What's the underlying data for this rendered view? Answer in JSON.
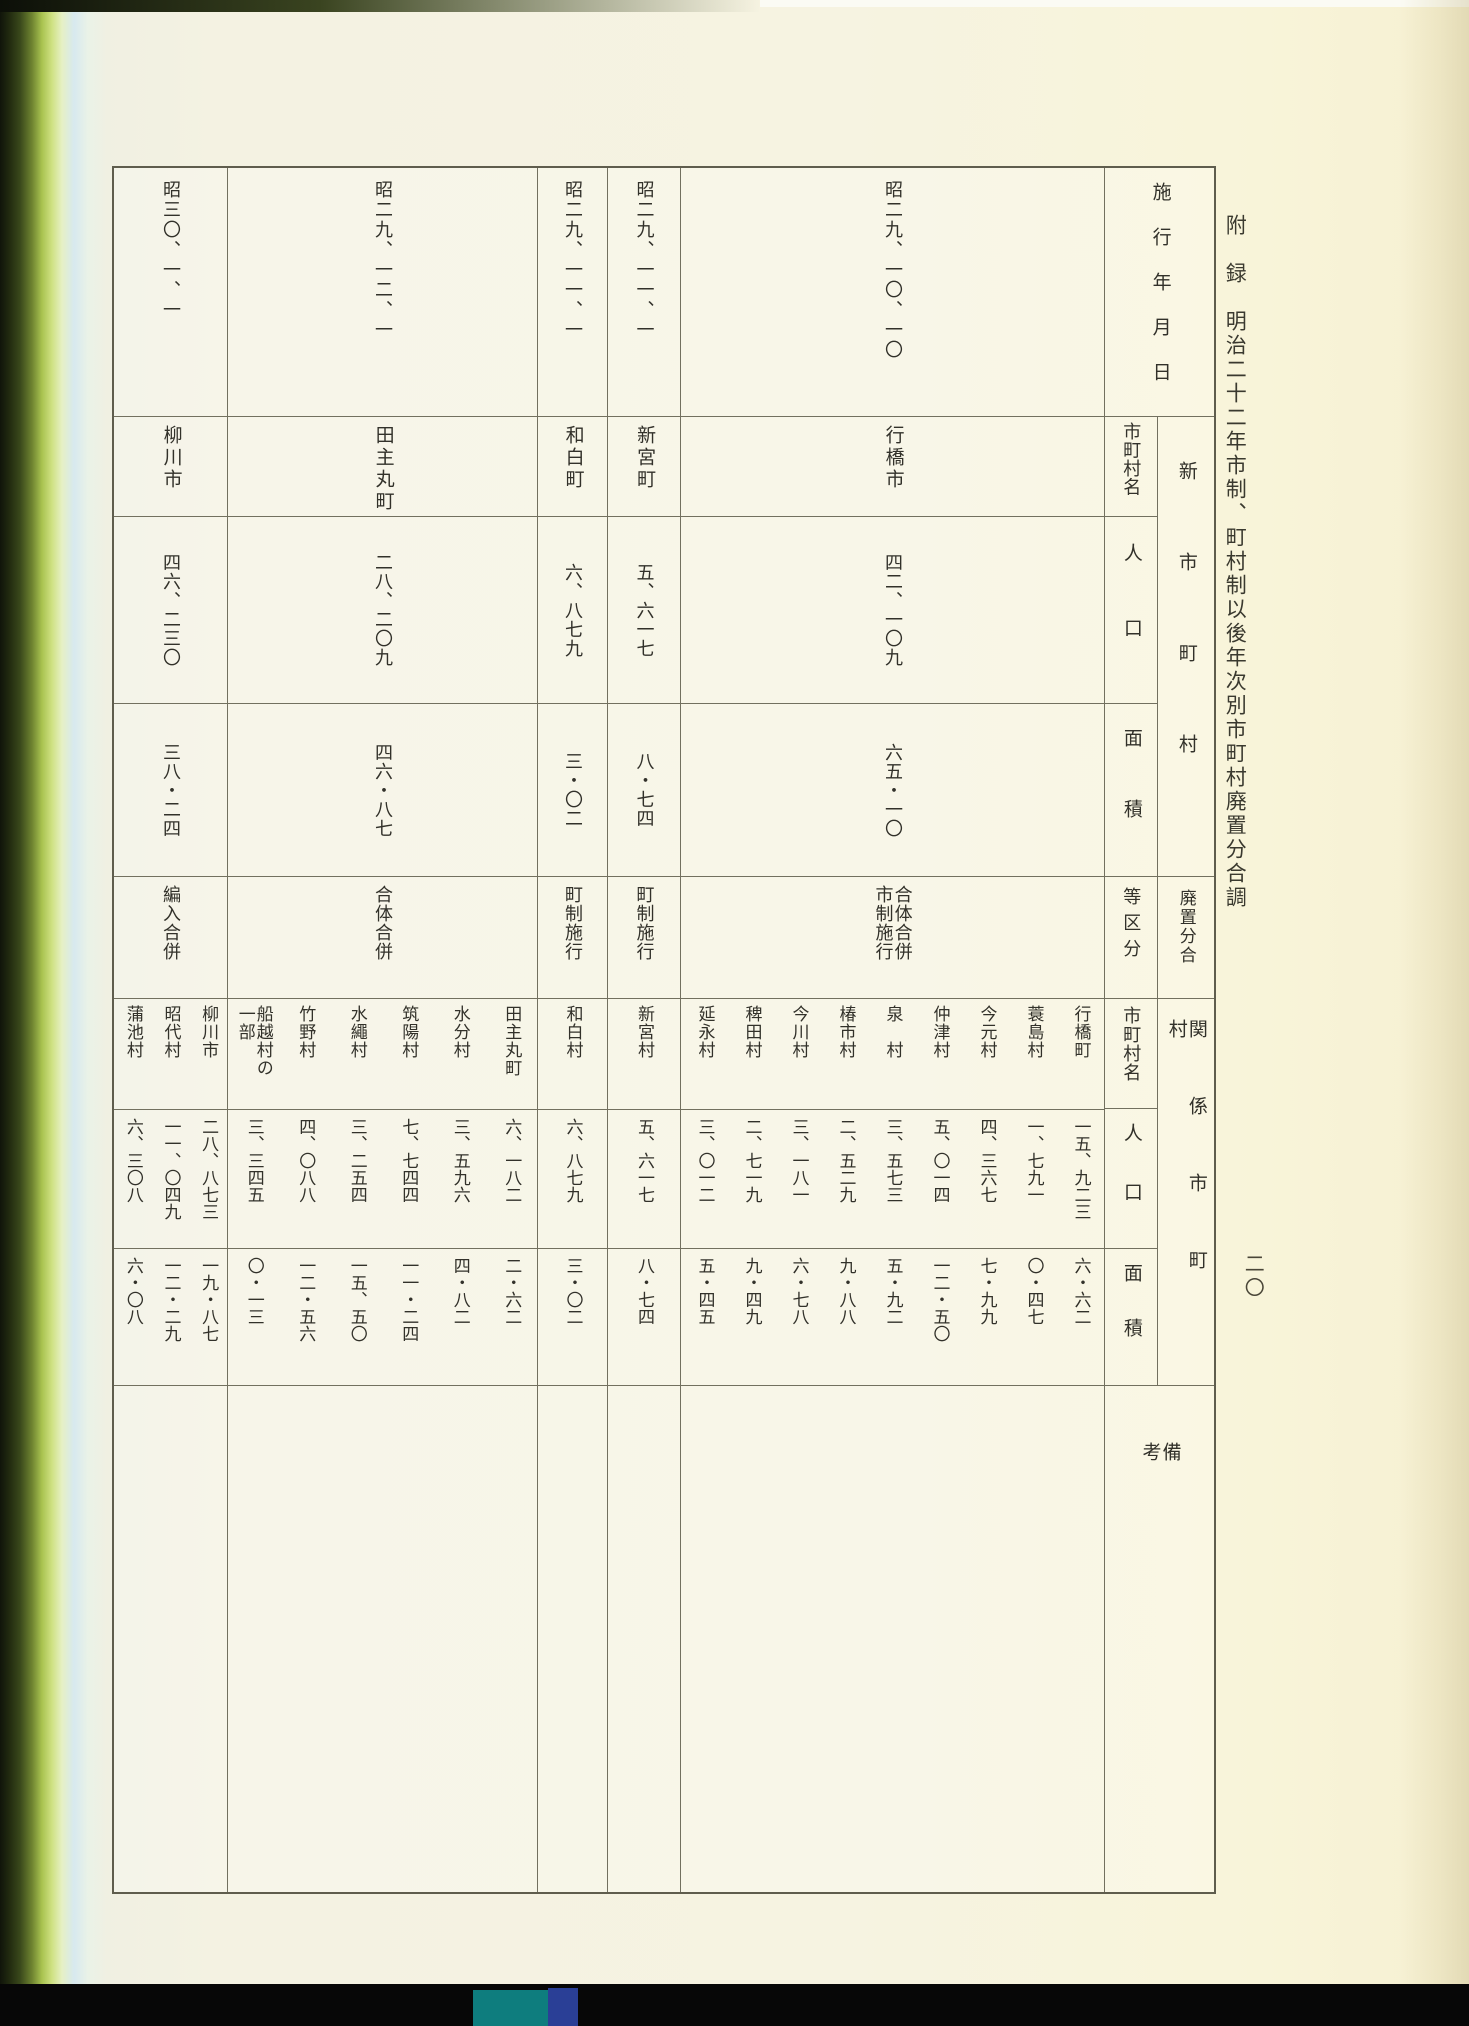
{
  "page": {
    "title": "附　録　明治二十二年市制、町村制以後年次別市町村廃置分合調",
    "page_number": "二〇",
    "colors": {
      "page_bg": "#f6f3e1",
      "table_line": "#72705f",
      "text": "#32312a",
      "gutter_green": "#a9c350",
      "gutter_blue": "#d7e9ef",
      "scan_edge": "#070707",
      "bottom_spot_teal": "#0e7d7e",
      "bottom_spot_blue": "#2a3f96"
    }
  },
  "table": {
    "headers": {
      "date": "施行年月日",
      "new_group": "新市町村",
      "new_name": "市町村名",
      "new_population": "人口",
      "new_area": "面積",
      "category_group": "廃置分合",
      "category": "等区分",
      "related_group": "関係市町村",
      "related_name": "市町村名",
      "related_population": "人口",
      "related_area": "面積",
      "remarks": "備考"
    },
    "rows": [
      {
        "date": "昭二九、一〇、一〇",
        "name": "行橋市",
        "population": "四二、一〇九",
        "area": "六五・一〇",
        "category": "合体合併\n市制施行",
        "related": [
          {
            "name": "行橋町",
            "population": "一五、九二三",
            "area": "六・六二"
          },
          {
            "name": "蓑島村",
            "population": "一、七九一",
            "area": "〇・四七"
          },
          {
            "name": "今元村",
            "population": "四、三六七",
            "area": "七・九九"
          },
          {
            "name": "仲津村",
            "population": "五、〇一四",
            "area": "一二・五〇"
          },
          {
            "name": "泉　村",
            "population": "三、五七三",
            "area": "五・九二"
          },
          {
            "name": "椿市村",
            "population": "二、五二九",
            "area": "九・八八"
          },
          {
            "name": "今川村",
            "population": "三、一八一",
            "area": "六・七八"
          },
          {
            "name": "稗田村",
            "population": "二、七一九",
            "area": "九・四九"
          },
          {
            "name": "延永村",
            "population": "三、〇一二",
            "area": "五・四五"
          }
        ]
      },
      {
        "date": "昭二九、一一、一",
        "name": "新宮町",
        "population": "五、六一七",
        "area": "八・七四",
        "category": "町制施行",
        "related": [
          {
            "name": "新宮村",
            "population": "五、六一七",
            "area": "八・七四"
          }
        ]
      },
      {
        "date": "昭二九、一一、一",
        "name": "和白町",
        "population": "六、八七九",
        "area": "三・〇二",
        "category": "町制施行",
        "related": [
          {
            "name": "和白村",
            "population": "六、八七九",
            "area": "三・〇二"
          }
        ]
      },
      {
        "date": "昭二九、一二、一",
        "name": "田主丸町",
        "population": "二八、二〇九",
        "area": "四六・八七",
        "category": "合体合併",
        "related": [
          {
            "name": "田主丸町",
            "population": "六、一八二",
            "area": "二・六二"
          },
          {
            "name": "水分村",
            "population": "三、五九六",
            "area": "四・八二"
          },
          {
            "name": "筑陽村",
            "population": "七、七四四",
            "area": "一一・二四"
          },
          {
            "name": "水繩村",
            "population": "三、二五四",
            "area": "一五、五〇"
          },
          {
            "name": "竹野村",
            "population": "四、〇八八",
            "area": "一二・五六"
          },
          {
            "name": "船越村の\n一部",
            "population": "三、三四五",
            "area": "〇・一三"
          }
        ]
      },
      {
        "date": "昭三〇、一、一",
        "name": "柳川市",
        "population": "四六、二三〇",
        "area": "三八・二四",
        "category": "編入合併",
        "related": [
          {
            "name": "柳川市",
            "population": "二八、八七三",
            "area": "一九・八七"
          },
          {
            "name": "昭代村",
            "population": "一一、〇四九",
            "area": "一二・二九"
          },
          {
            "name": "蒲池村",
            "population": "六、三〇八",
            "area": "六・〇八"
          }
        ]
      }
    ]
  }
}
